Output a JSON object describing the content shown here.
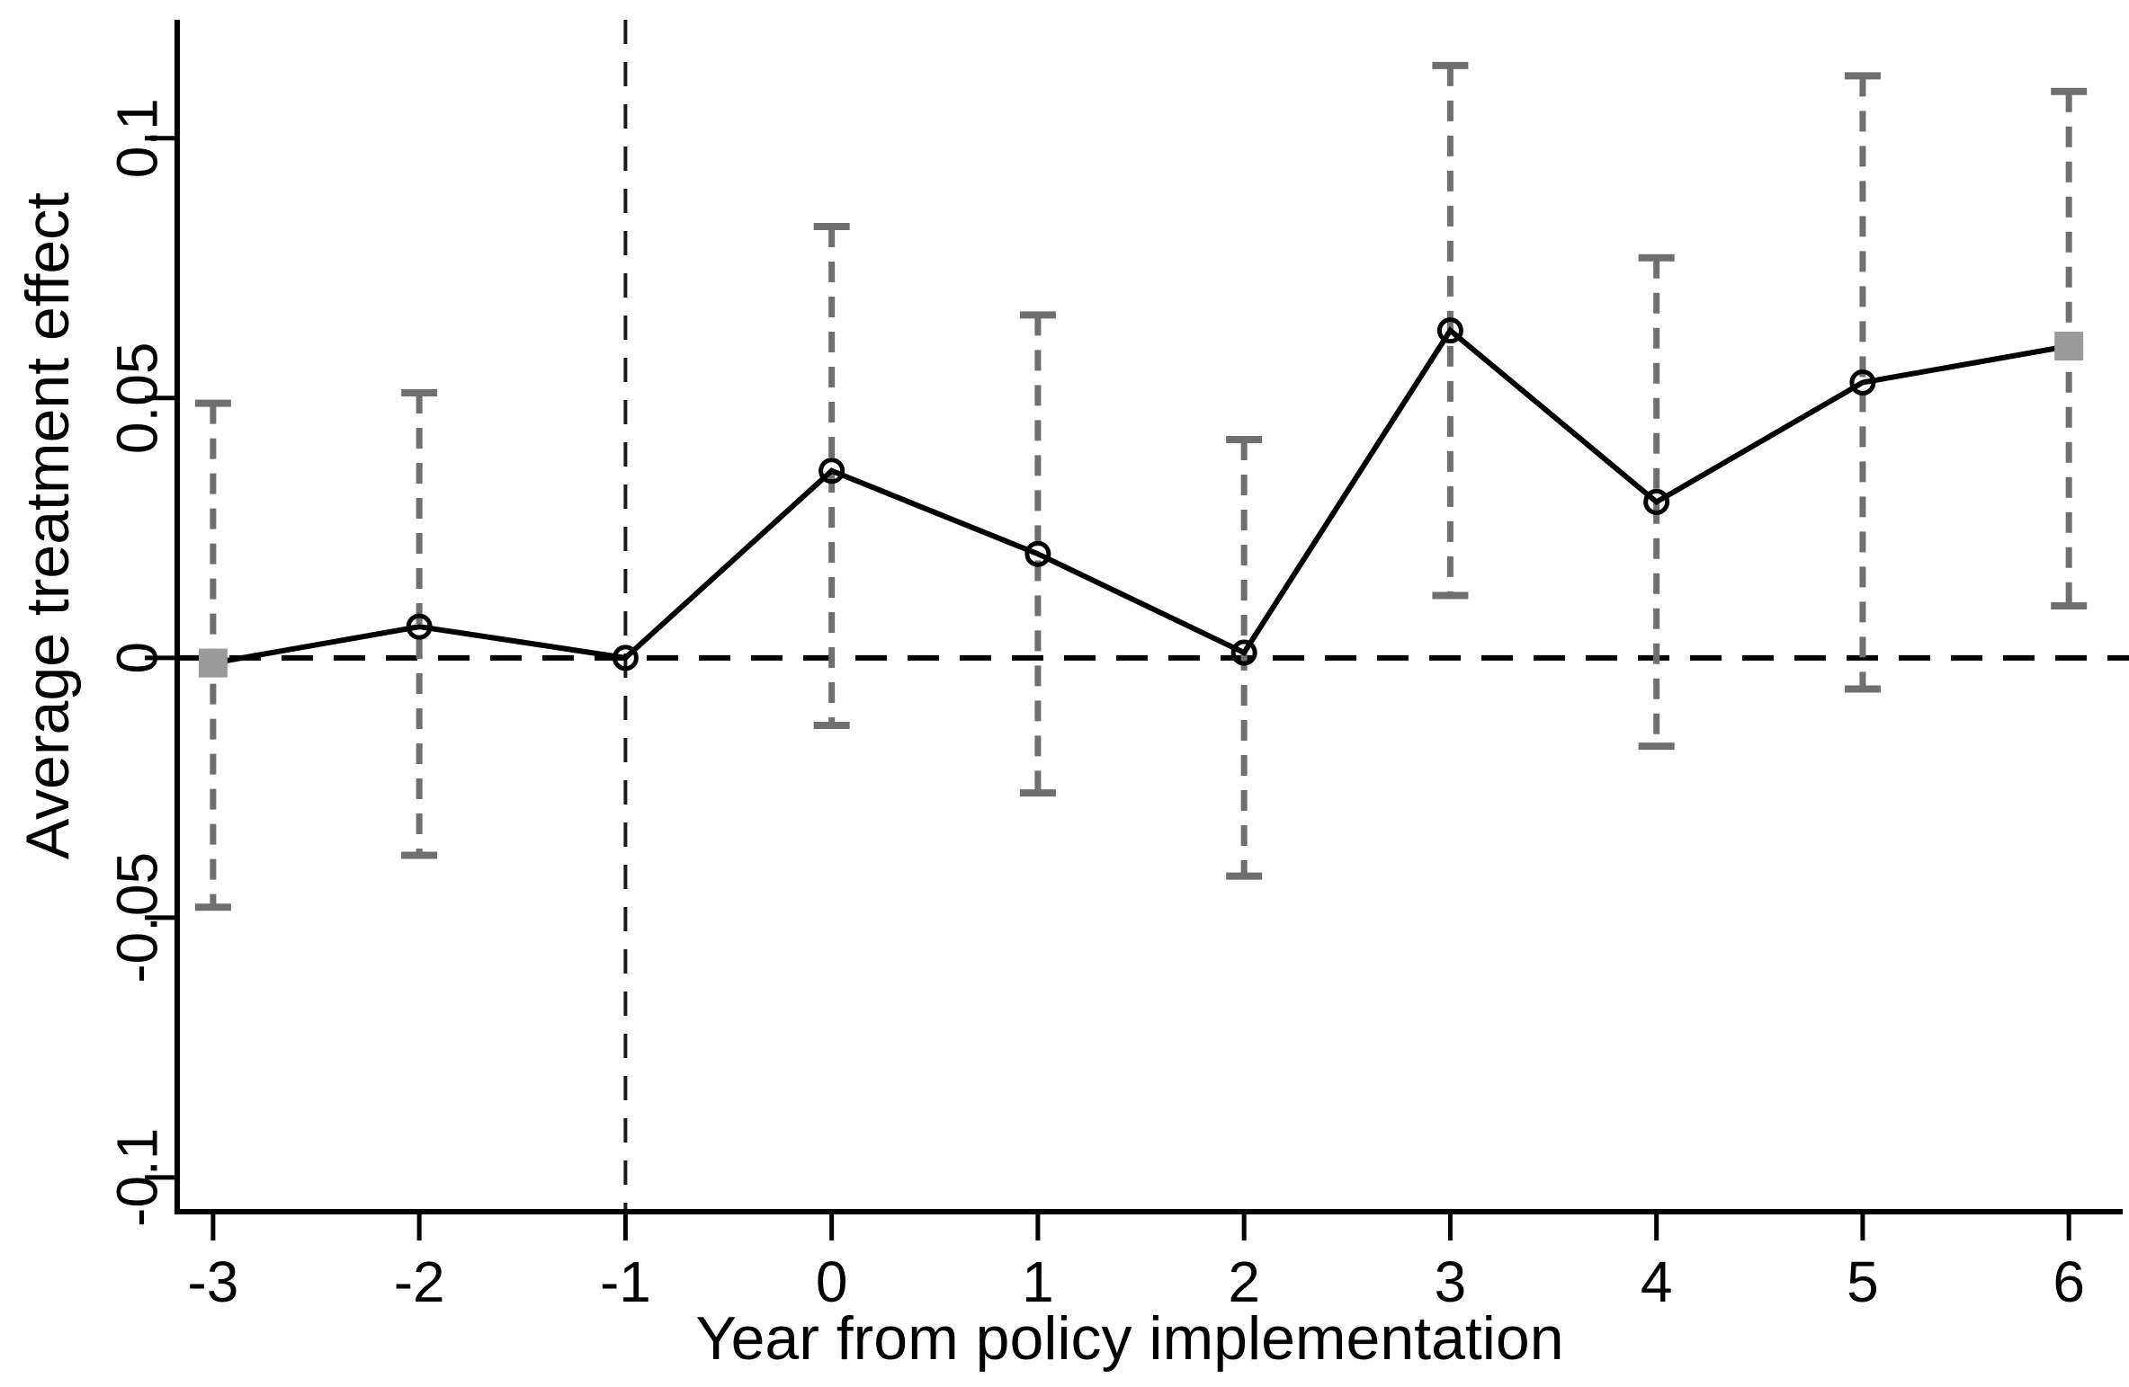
{
  "chart_data": {
    "type": "line",
    "title": "",
    "xlabel": "Year from policy implementation",
    "ylabel": "Average treatment effect",
    "x": [
      -3,
      -2,
      -1,
      0,
      1,
      2,
      3,
      4,
      5,
      6
    ],
    "series": [
      {
        "name": "Average treatment effect",
        "values": [
          -0.001,
          0.006,
          0.0,
          0.036,
          0.02,
          0.001,
          0.063,
          0.03,
          0.053,
          0.06
        ]
      }
    ],
    "ci_low": [
      -0.048,
      -0.038,
      null,
      -0.013,
      -0.026,
      -0.042,
      0.012,
      -0.017,
      -0.006,
      0.01
    ],
    "ci_high": [
      0.049,
      0.051,
      null,
      0.083,
      0.066,
      0.042,
      0.114,
      0.077,
      0.112,
      0.109
    ],
    "marker_types": [
      "square",
      "circle",
      "circle",
      "circle",
      "circle",
      "circle",
      "circle",
      "circle",
      "circle",
      "square"
    ],
    "reference_vline_x": -1,
    "zero_hline_y": 0,
    "xticks": {
      "values": [
        -3,
        -2,
        -1,
        0,
        1,
        2,
        3,
        4,
        5,
        6
      ],
      "labels": [
        "-3",
        "-2",
        "-1",
        "0",
        "1",
        "2",
        "3",
        "4",
        "5",
        "6"
      ]
    },
    "yticks": {
      "values": [
        0.1,
        0.05,
        0,
        -0.05,
        -0.1
      ],
      "labels": [
        "0.1",
        "0.05",
        "0",
        "-0.05",
        "-0.1"
      ]
    },
    "xlim": [
      -3.174,
      6.261
    ],
    "ylim": [
      -0.1066,
      0.1228
    ],
    "grid": "off",
    "legend": "none",
    "colors": {
      "line": "#000000",
      "axis": "#000000",
      "zero_line": "#000000",
      "reference_line": "#1a1a1a",
      "ci": "#6f6f6f",
      "square_marker": "#9a9a9a",
      "background": "#ffffff"
    }
  }
}
